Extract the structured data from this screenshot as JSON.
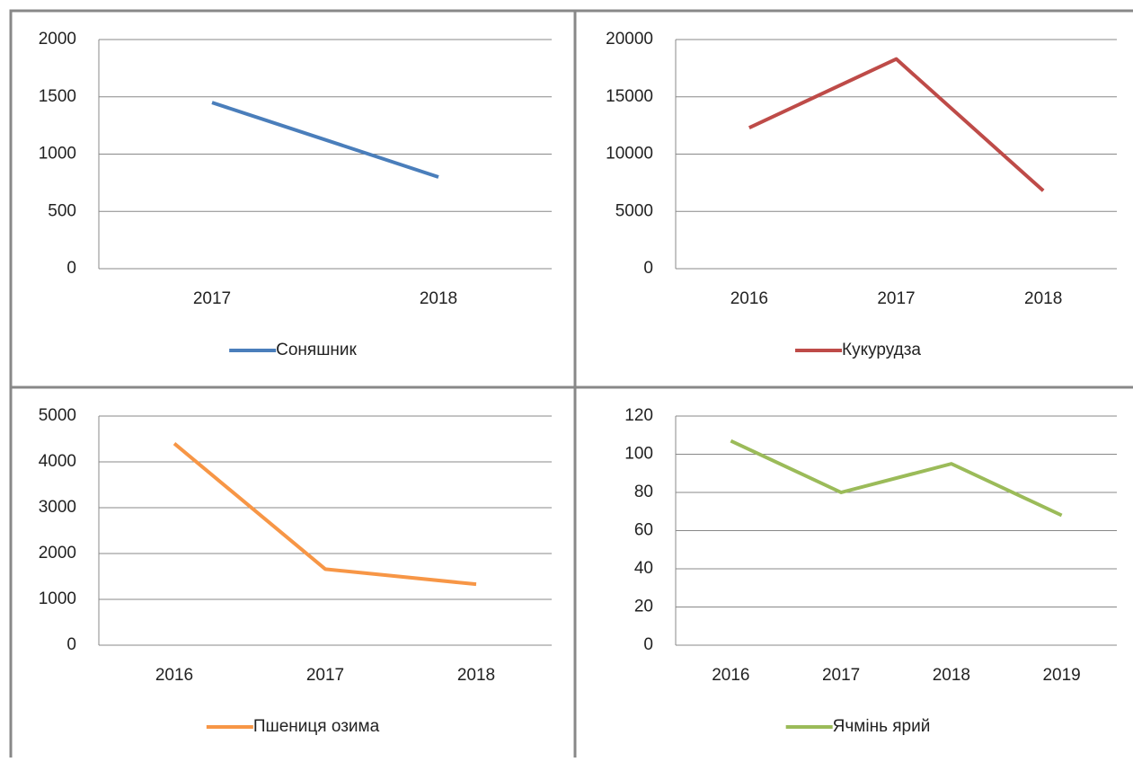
{
  "chart_data": [
    {
      "type": "line",
      "categories": [
        "2017",
        "2018"
      ],
      "series": [
        {
          "name": "Соняшник",
          "color": "#4a7ebb",
          "values": [
            1450,
            800
          ]
        }
      ],
      "ylim": [
        0,
        2000
      ],
      "yticks": [
        0,
        500,
        1000,
        1500,
        2000
      ],
      "grid": true,
      "legend": "bottom"
    },
    {
      "type": "line",
      "categories": [
        "2016",
        "2017",
        "2018"
      ],
      "series": [
        {
          "name": "Кукурудза",
          "color": "#be4b48",
          "values": [
            12300,
            18300,
            6800
          ]
        }
      ],
      "ylim": [
        0,
        20000
      ],
      "yticks": [
        0,
        5000,
        10000,
        15000,
        20000
      ],
      "grid": true,
      "legend": "bottom"
    },
    {
      "type": "line",
      "categories": [
        "2016",
        "2017",
        "2018"
      ],
      "series": [
        {
          "name": "Пшениця озима",
          "color": "#f79646",
          "values": [
            4400,
            1660,
            1330
          ]
        }
      ],
      "ylim": [
        0,
        5000
      ],
      "yticks": [
        0,
        1000,
        2000,
        3000,
        4000,
        5000
      ],
      "grid": true,
      "legend": "bottom"
    },
    {
      "type": "line",
      "categories": [
        "2016",
        "2017",
        "2018",
        "2019"
      ],
      "series": [
        {
          "name": "Ячмінь ярий",
          "color": "#9bbb59",
          "values": [
            107,
            80,
            95,
            68
          ]
        }
      ],
      "ylim": [
        0,
        120
      ],
      "yticks": [
        0,
        20,
        40,
        60,
        80,
        100,
        120
      ],
      "grid": true,
      "legend": "bottom"
    }
  ]
}
